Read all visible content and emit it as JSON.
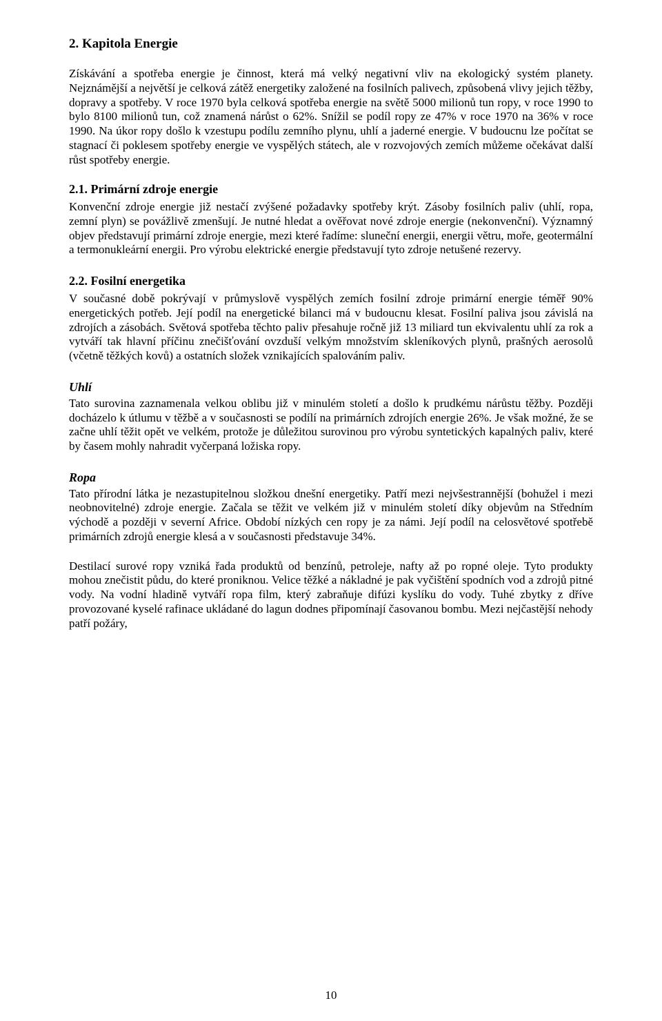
{
  "chapter": {
    "title": "2. Kapitola Energie",
    "intro": "Získávání a spotřeba energie je činnost, která má velký negativní vliv na ekologický systém planety. Nejznámější a největší je celková zátěž energetiky založené na fosilních palivech, způsobená vlivy jejich těžby, dopravy a spotřeby. V roce 1970 byla celková spotřeba energie na světě 5000 milionů tun ropy, v roce 1990 to bylo 8100 milionů tun, což znamená nárůst o 62%. Snížil se podíl ropy ze 47% v roce 1970 na 36% v roce 1990. Na úkor ropy došlo k vzestupu podílu zemního plynu, uhlí a jaderné energie. V budoucnu lze počítat se stagnací či poklesem spotřeby energie ve vyspělých státech, ale v rozvojových zemích můžeme očekávat další růst spotřeby energie."
  },
  "sections": {
    "primarni": {
      "title": "2.1. Primární zdroje energie",
      "body": "Konvenční zdroje energie již nestačí zvýšené požadavky spotřeby krýt. Zásoby fosilních paliv (uhlí, ropa, zemní plyn) se povážlivě zmenšují. Je nutné hledat a ověřovat nové zdroje energie (nekonvenční). Významný objev představují primární zdroje energie, mezi které řadíme: sluneční energii, energii větru, moře, geotermální a termonukleární energii. Pro výrobu elektrické energie představují tyto zdroje netušené rezervy."
    },
    "fosilni": {
      "title": "2.2. Fosilní energetika",
      "body": "V současné době pokrývají v průmyslově vyspělých zemích fosilní zdroje primární energie téměř 90% energetických potřeb. Její podíl na energetické bilanci má v budoucnu klesat. Fosilní paliva jsou závislá na zdrojích a zásobách. Světová spotřeba těchto paliv přesahuje ročně již 13 miliard tun ekvivalentu uhlí za rok a vytváří tak hlavní příčinu znečišťování ovzduší velkým množstvím skleníkových plynů, prašných aerosolů (včetně těžkých kovů) a ostatních složek vznikajících spalováním paliv."
    },
    "uhli": {
      "title": "Uhlí",
      "body": "Tato surovina zaznamenala velkou oblibu již v minulém století a došlo k prudkému nárůstu těžby. Později docházelo k útlumu v těžbě a v současnosti se podílí na primárních zdrojích energie 26%. Je však možné, že se začne uhlí těžit opět ve velkém, protože je důležitou surovinou pro výrobu syntetických kapalných paliv, které by časem mohly nahradit vyčerpaná ložiska ropy."
    },
    "ropa": {
      "title": "Ropa",
      "body1": "Tato přírodní látka je nezastupitelnou složkou dnešní energetiky. Patří mezi nejvšestrannější (bohužel i mezi neobnovitelné) zdroje energie. Začala se těžit ve velkém již v minulém století díky objevům na Středním východě a později v severní Africe. Období nízkých cen ropy je za námi. Její podíl na celosvětové spotřebě primárních zdrojů energie klesá a v současnosti představuje 34%.",
      "body2": "Destilací surové ropy vzniká řada produktů od benzínů, petroleje, nafty až po ropné oleje. Tyto produkty mohou znečistit půdu, do které proniknou. Velice těžké a nákladné je pak vyčištění spodních vod a zdrojů pitné vody. Na vodní hladině vytváří ropa film, který zabraňuje difúzi kyslíku do vody. Tuhé zbytky z dříve provozované kyselé rafinace ukládané do lagun dodnes připomínají časovanou bombu. Mezi nejčastější nehody patří požáry,"
    }
  },
  "page_number": "10"
}
